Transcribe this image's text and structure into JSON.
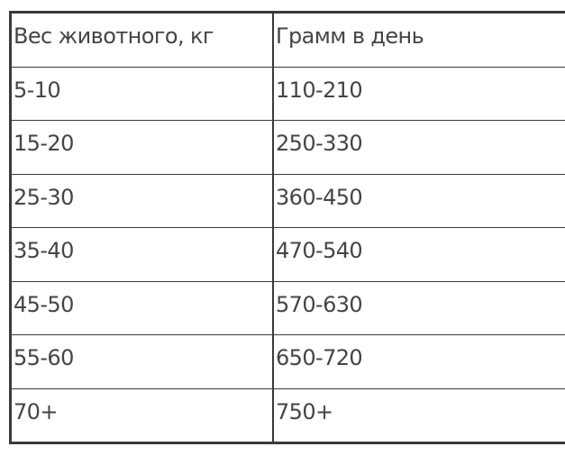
{
  "table": {
    "headers": [
      "Вес животного, кг",
      "Грамм в день"
    ],
    "rows": [
      [
        "5-10",
        "110-210"
      ],
      [
        "15-20",
        "250-330"
      ],
      [
        "25-30",
        "360-450"
      ],
      [
        "35-40",
        "470-540"
      ],
      [
        "45-50",
        "570-630"
      ],
      [
        "55-60",
        "650-720"
      ],
      [
        "70+",
        "750+"
      ]
    ]
  }
}
